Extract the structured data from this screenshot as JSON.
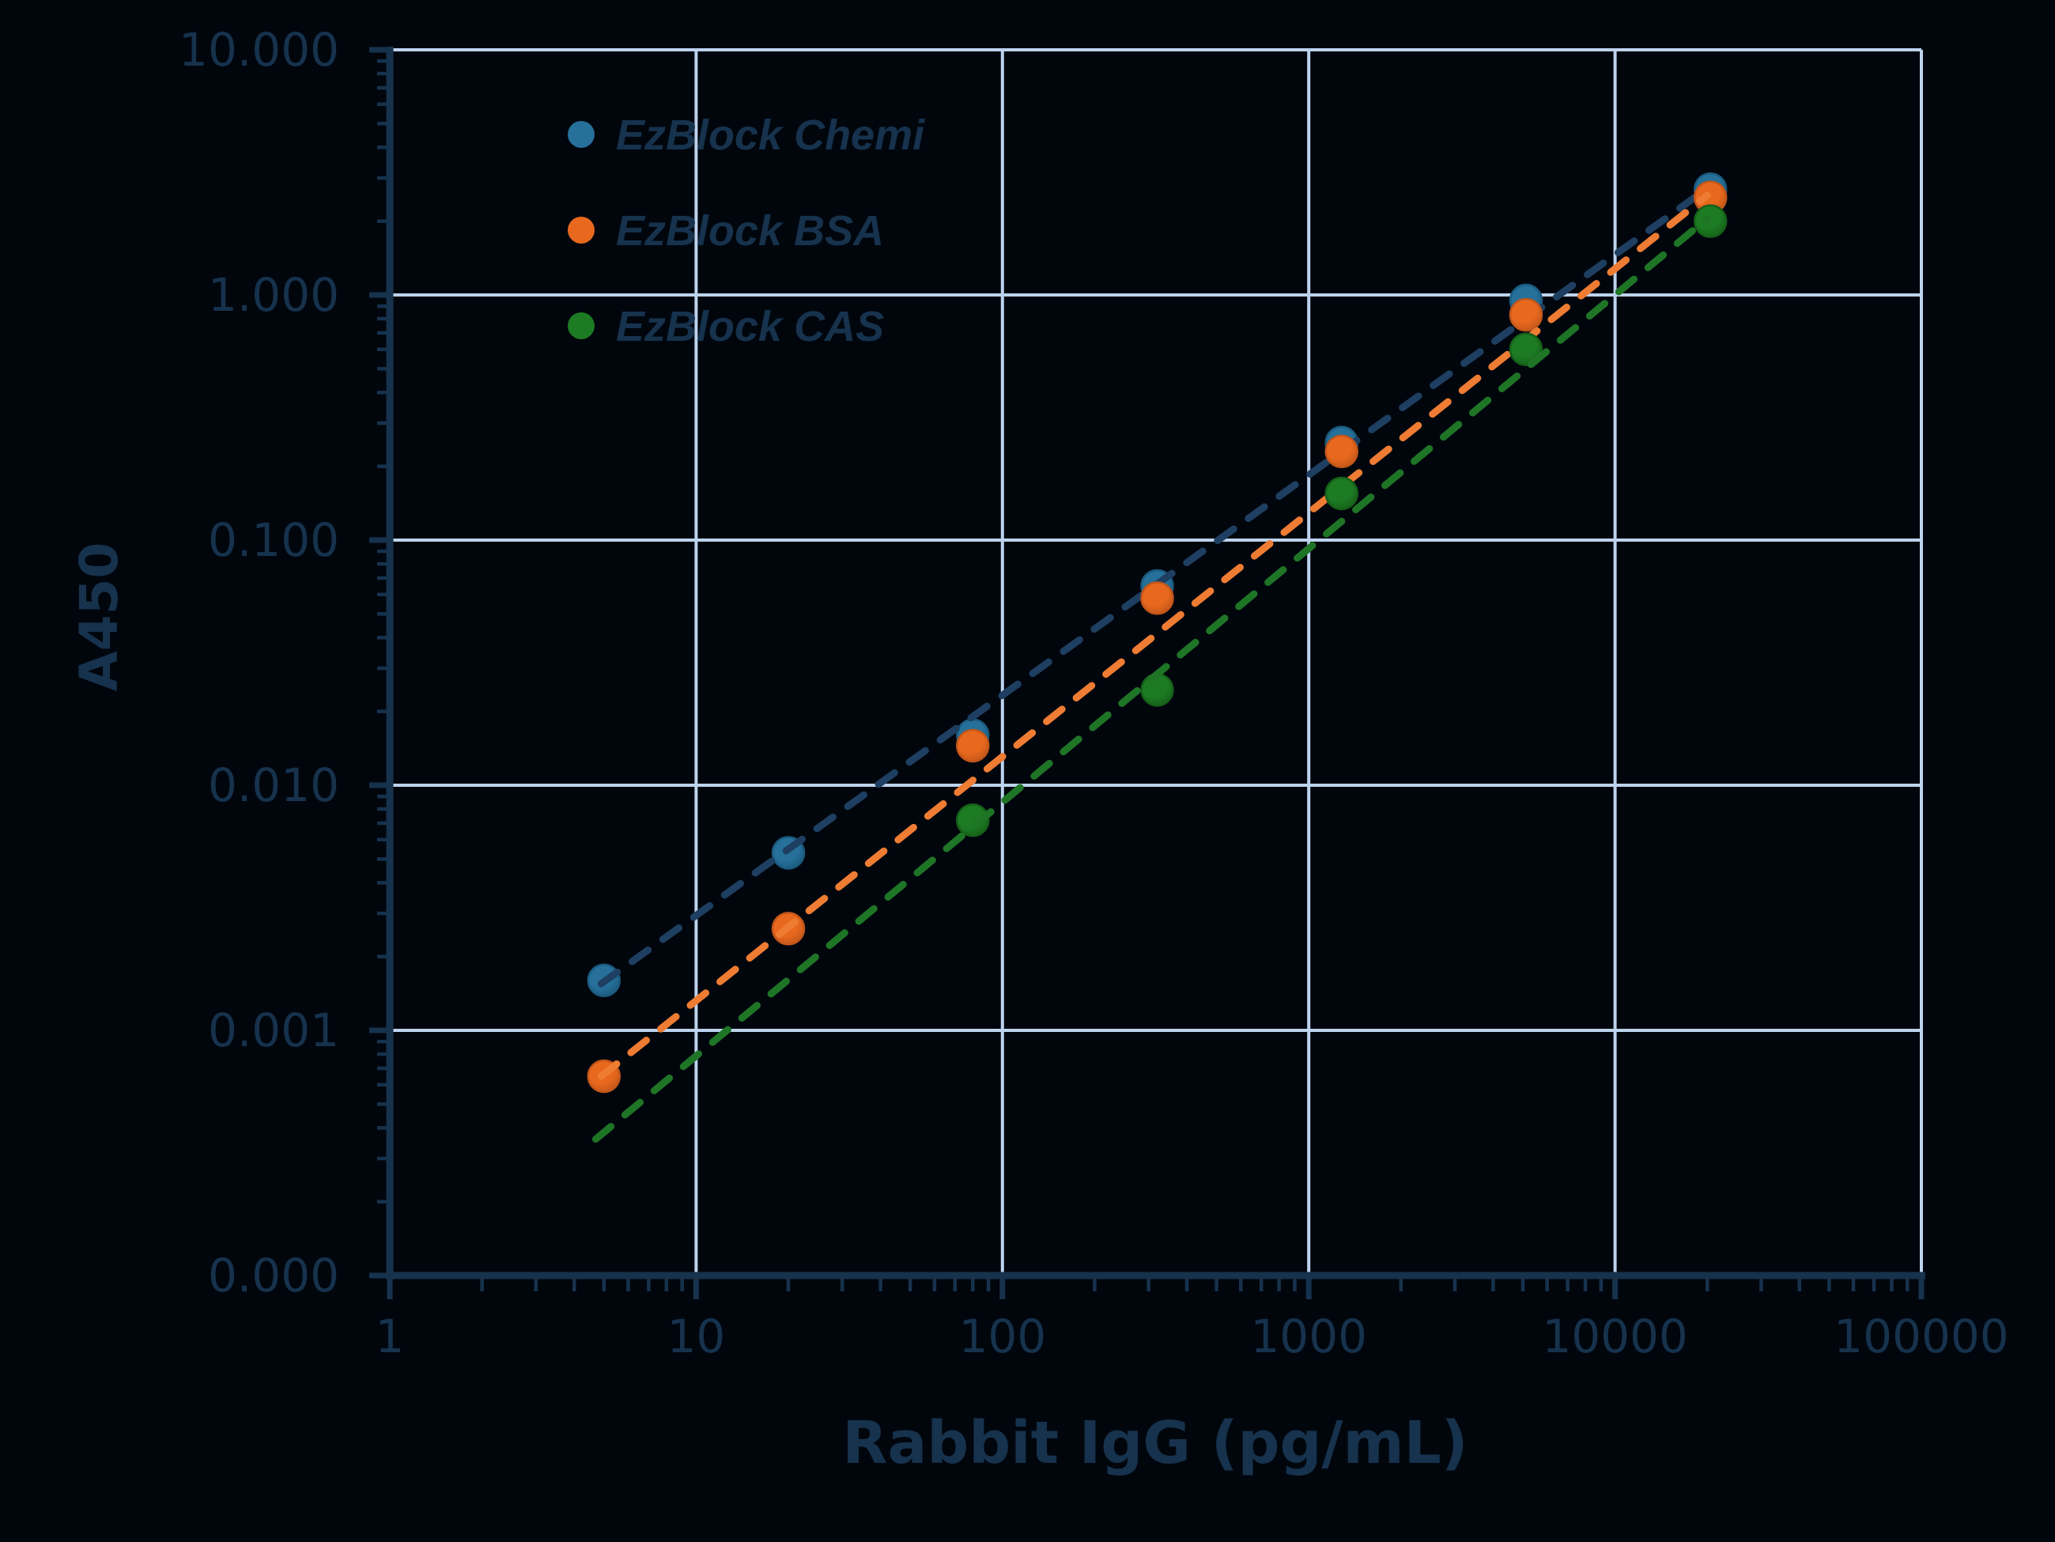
{
  "figure": {
    "background": "#01060d",
    "text_color": "#16324d",
    "grid_color": "#bdd3ee",
    "axis_color": "#16324d"
  },
  "legend": {
    "items": [
      {
        "label": "EzBlock Chemi",
        "color": "#26709a"
      },
      {
        "label": "EzBlock BSA",
        "color": "#e8691e"
      },
      {
        "label": "EzBlock CAS",
        "color": "#1d7b24"
      }
    ]
  },
  "chart_data": {
    "type": "scatter",
    "title": "",
    "xlabel": "Rabbit IgG (pg/mL)",
    "ylabel": "A450",
    "x_scale": "log",
    "y_scale": "log",
    "xlim": [
      1,
      100000
    ],
    "ylim": [
      0.0001,
      10
    ],
    "grid": true,
    "legend_position": "top-left",
    "x_axis": {
      "tick_values": [
        1,
        10,
        100,
        1000,
        10000,
        100000
      ],
      "tick_labels": [
        "1",
        "10",
        "100",
        "1000",
        "10000",
        "100000"
      ]
    },
    "y_axis": {
      "tick_values": [
        10,
        1,
        0.1,
        0.01,
        0.001,
        0.0001
      ],
      "tick_labels": [
        "10.000",
        "1.000",
        "0.100",
        "0.010",
        "0.001",
        "0.000"
      ]
    },
    "series": [
      {
        "name": "EzBlock Chemi",
        "marker_color": "#26709a",
        "marker_edge": "#1b5a7e",
        "line_color": "#1e3f61",
        "line_style": "dashed",
        "x": [
          5,
          20,
          80,
          320,
          1280,
          5120,
          20480
        ],
        "y": [
          0.0016,
          0.0053,
          0.016,
          0.065,
          0.25,
          0.95,
          2.7
        ],
        "trend": [
          [
            4.9,
            0.00155
          ],
          [
            20000,
            2.72
          ]
        ]
      },
      {
        "name": "EzBlock BSA",
        "marker_color": "#e8691e",
        "marker_edge": "#c2561a",
        "line_color": "#ef7c33",
        "line_style": "dashed",
        "x": [
          5,
          20,
          80,
          320,
          1280,
          5120,
          20480
        ],
        "y": [
          0.00065,
          0.0026,
          0.0145,
          0.058,
          0.23,
          0.83,
          2.5
        ],
        "trend": [
          [
            4.9,
            0.00065
          ],
          [
            20000,
            2.55
          ]
        ]
      },
      {
        "name": "EzBlock CAS",
        "marker_color": "#1d7b24",
        "marker_edge": "#156018",
        "line_color": "#1f7526",
        "line_style": "dashed",
        "x": [
          80,
          320,
          1280,
          5120,
          20480
        ],
        "y": [
          0.0072,
          0.0245,
          0.155,
          0.6,
          2.0
        ],
        "trend": [
          [
            4.7,
            0.00036
          ],
          [
            20000,
            2.05
          ]
        ]
      }
    ]
  }
}
